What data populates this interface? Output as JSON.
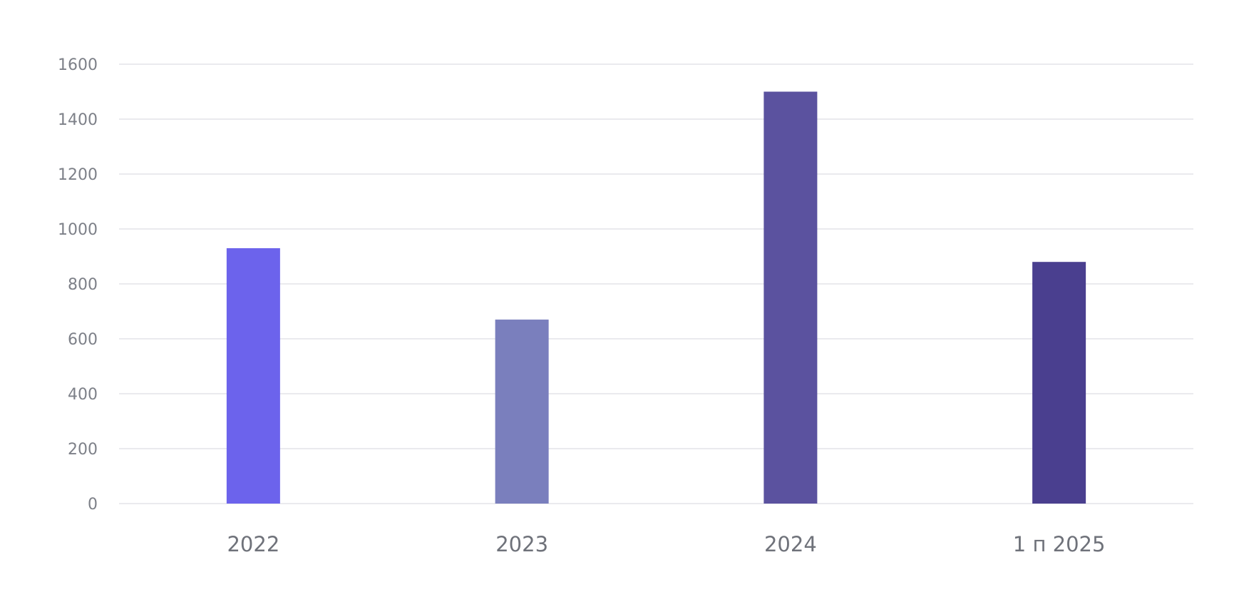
{
  "chart_data": {
    "type": "bar",
    "categories": [
      "2022",
      "2023",
      "2024",
      "1 п 2025"
    ],
    "values": [
      930,
      670,
      1500,
      880
    ],
    "colors": [
      "#6c63ec",
      "#7a7fbd",
      "#5b529f",
      "#4a3f8f"
    ],
    "ylim": [
      0,
      1600
    ],
    "yticks": [
      "0",
      "200",
      "400",
      "600",
      "800",
      "1000",
      "1200",
      "1400",
      "1600"
    ],
    "grid": true,
    "gridline_color": "#e3e4e8"
  }
}
